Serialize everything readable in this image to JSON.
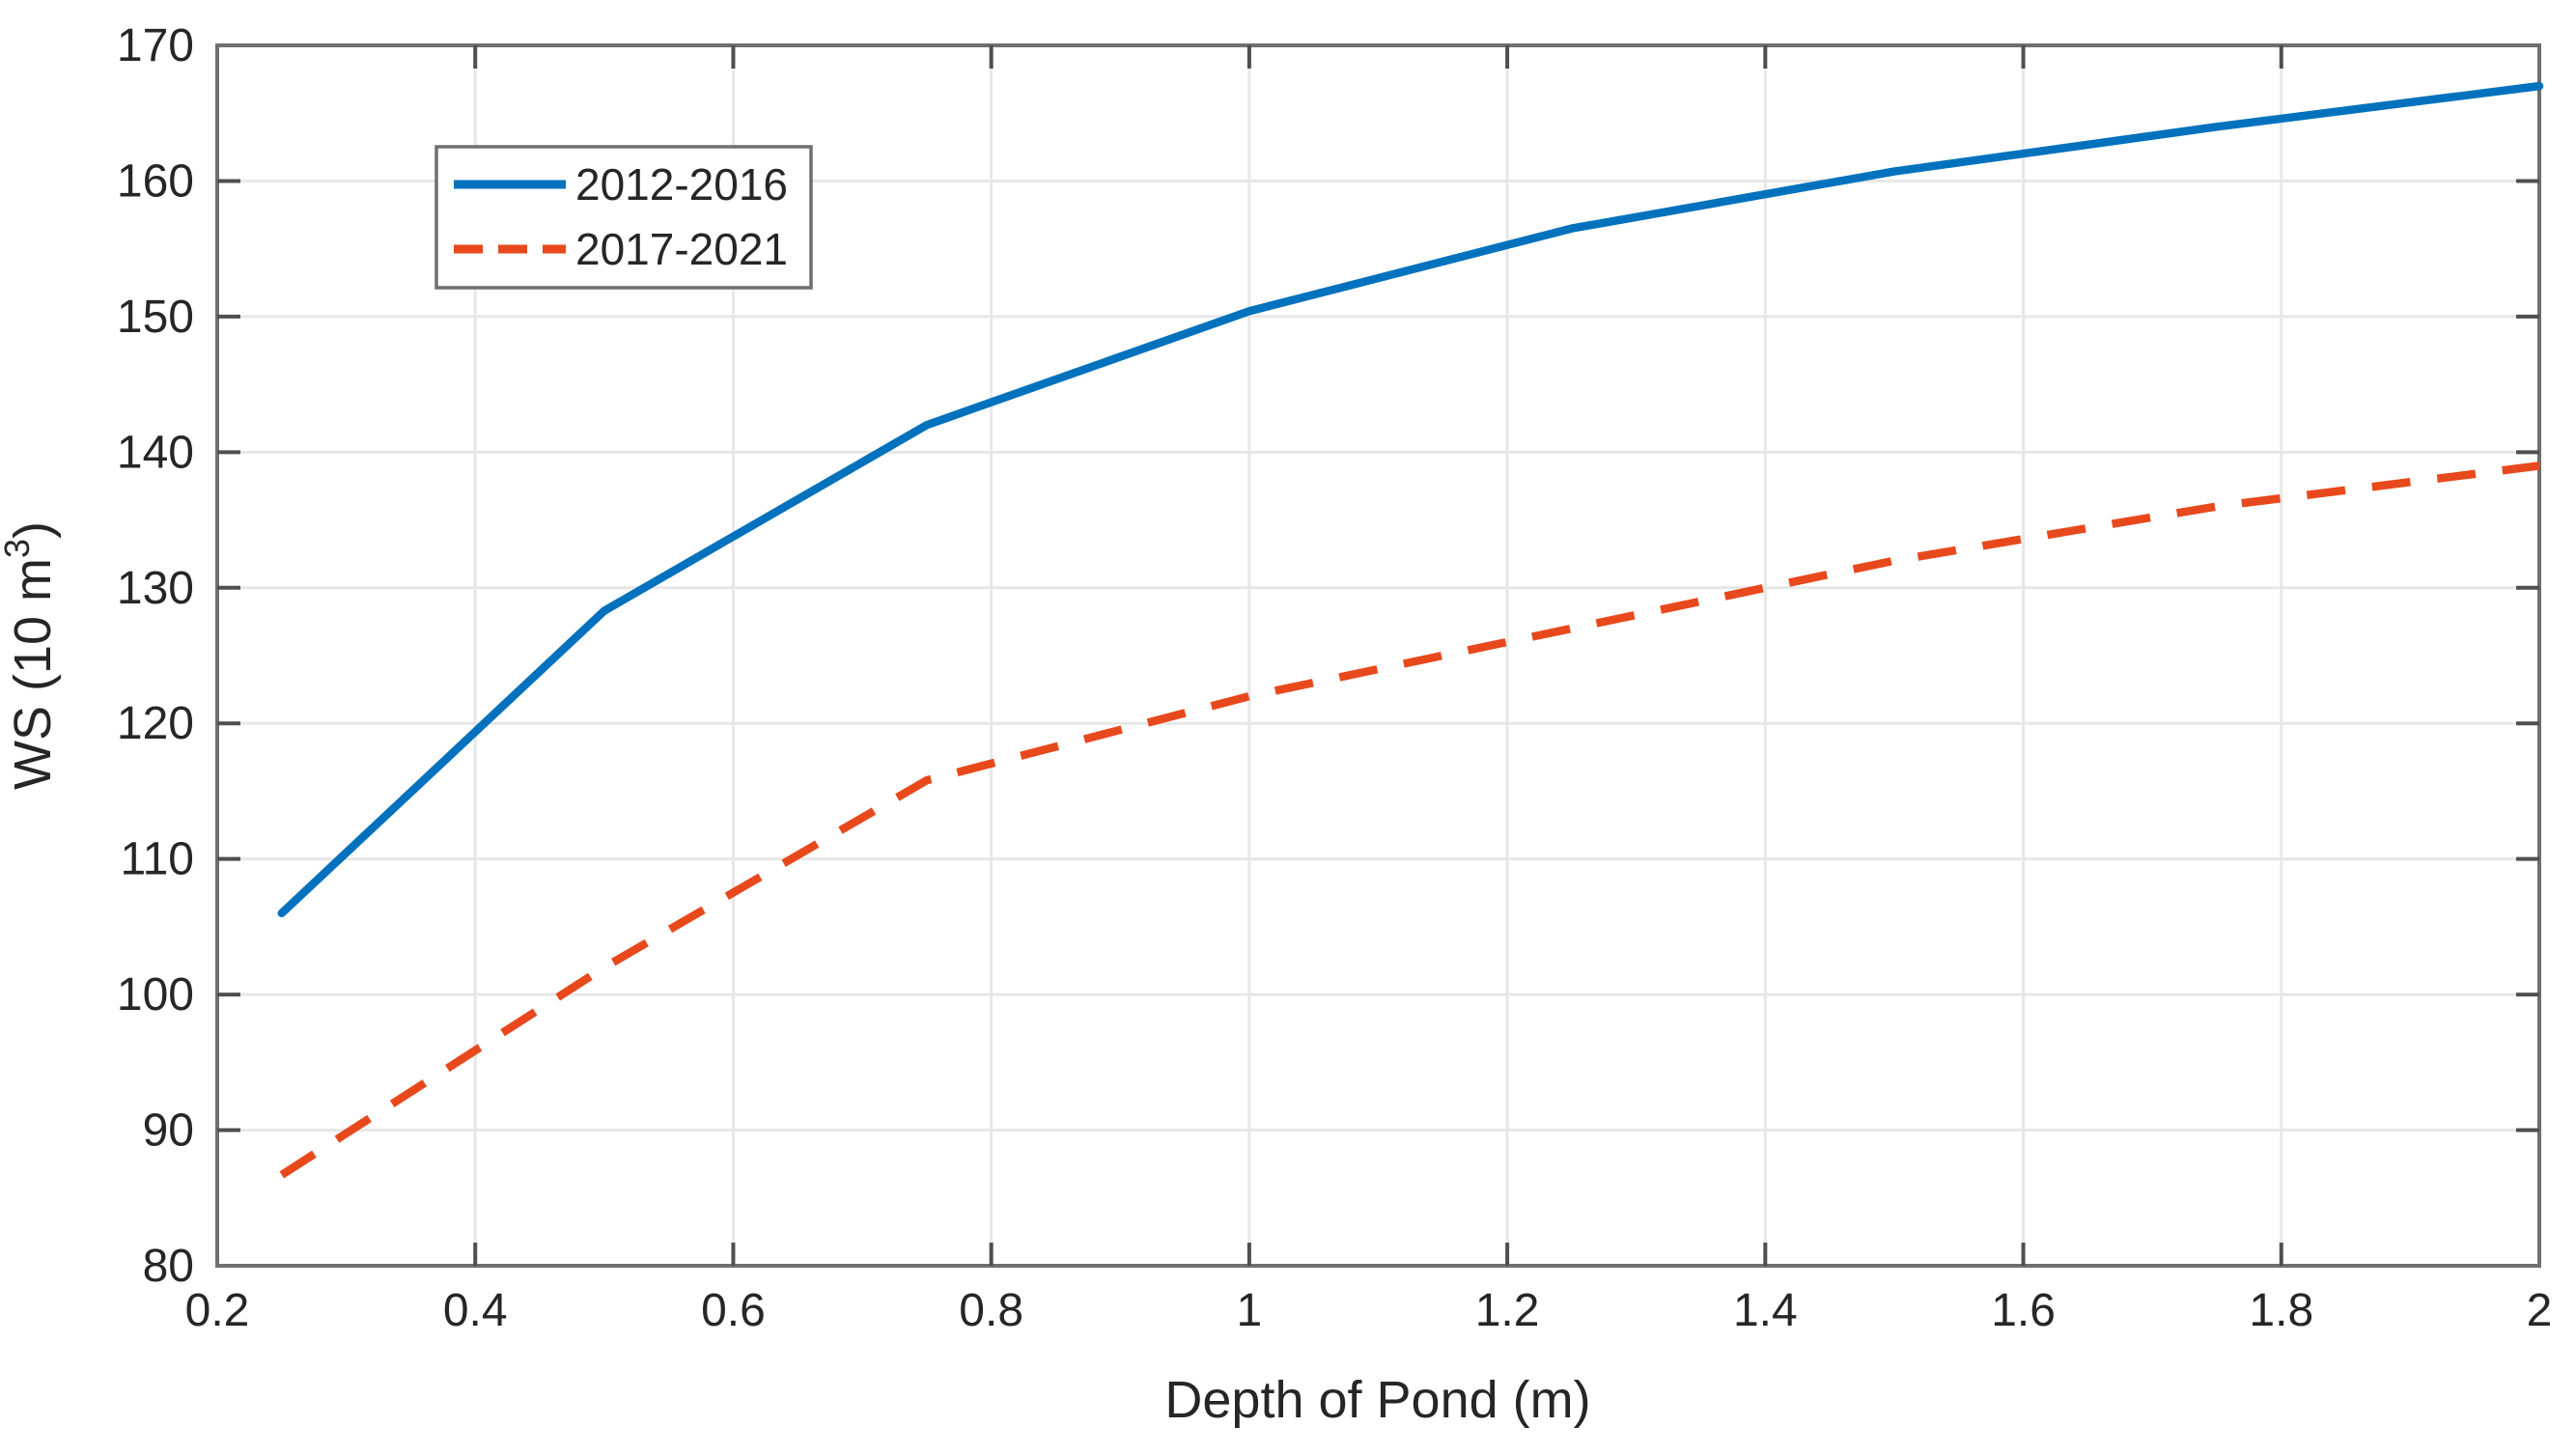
{
  "figure": {
    "xlabel": "Depth of Pond (m)",
    "ylabel_prefix": "WS (10 m",
    "ylabel_exponent": "3",
    "ylabel_suffix": ")"
  },
  "chart_data": {
    "type": "line",
    "title": "",
    "xlabel": "Depth of Pond (m)",
    "ylabel": "WS (10 m^3)",
    "x": [
      0.25,
      0.5,
      0.75,
      1,
      1.25,
      1.5,
      1.75,
      2
    ],
    "series": [
      {
        "name": "2012-2016",
        "style": "solid",
        "color": "#0072BD",
        "values": [
          106,
          128.3,
          142,
          150.4,
          156.5,
          160.7,
          164,
          167
        ]
      },
      {
        "name": "2017-2021",
        "style": "dashed",
        "color": "#E8491C",
        "values": [
          86.7,
          102,
          115.8,
          122,
          127,
          132,
          136,
          139
        ]
      }
    ],
    "xlim": [
      0.2,
      2
    ],
    "ylim": [
      80,
      170
    ],
    "x_ticks": [
      0.2,
      0.4,
      0.6,
      0.8,
      1,
      1.2,
      1.4,
      1.6,
      1.8,
      2
    ],
    "x_tick_labels": [
      "0.2",
      "0.4",
      "0.6",
      "0.8",
      "1",
      "1.2",
      "1.4",
      "1.6",
      "1.8",
      "2"
    ],
    "y_ticks": [
      80,
      90,
      100,
      110,
      120,
      130,
      140,
      150,
      160,
      170
    ],
    "y_tick_labels": [
      "80",
      "90",
      "100",
      "110",
      "120",
      "130",
      "140",
      "150",
      "160",
      "170"
    ],
    "grid": true,
    "legend_position": "upper-left-inside"
  },
  "styling": {
    "background": "#FFFFFF",
    "axis_color": "#6F6F6F",
    "tick_color": "#4F4F4F",
    "grid_color": "#E7E7E7",
    "text_color": "#262626"
  }
}
